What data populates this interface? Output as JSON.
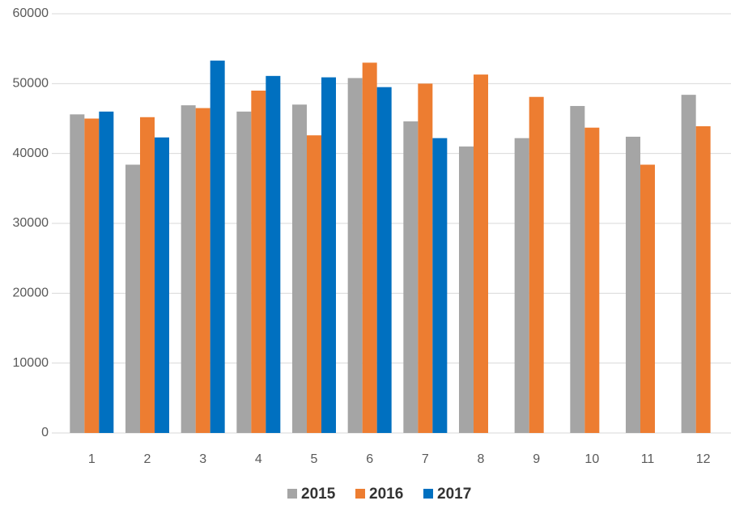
{
  "chart_data": {
    "type": "bar",
    "categories": [
      "1",
      "2",
      "3",
      "4",
      "5",
      "6",
      "7",
      "8",
      "9",
      "10",
      "11",
      "12"
    ],
    "series": [
      {
        "name": "2015",
        "color": "#a5a5a5",
        "values": [
          45600,
          38400,
          46900,
          46000,
          47000,
          50800,
          44600,
          41000,
          42200,
          46800,
          42400,
          48400
        ]
      },
      {
        "name": "2016",
        "color": "#ed7d31",
        "values": [
          45000,
          45200,
          46500,
          49000,
          42600,
          53000,
          50000,
          51300,
          48100,
          43700,
          38400,
          43900
        ]
      },
      {
        "name": "2017",
        "color": "#0070c0",
        "values": [
          46000,
          42300,
          53300,
          51100,
          50900,
          49500,
          42200,
          null,
          null,
          null,
          null,
          null
        ]
      }
    ],
    "ylim": [
      0,
      60000
    ],
    "yticks": [
      0,
      10000,
      20000,
      30000,
      40000,
      50000,
      60000
    ],
    "grid": true,
    "legend": "bottom"
  }
}
